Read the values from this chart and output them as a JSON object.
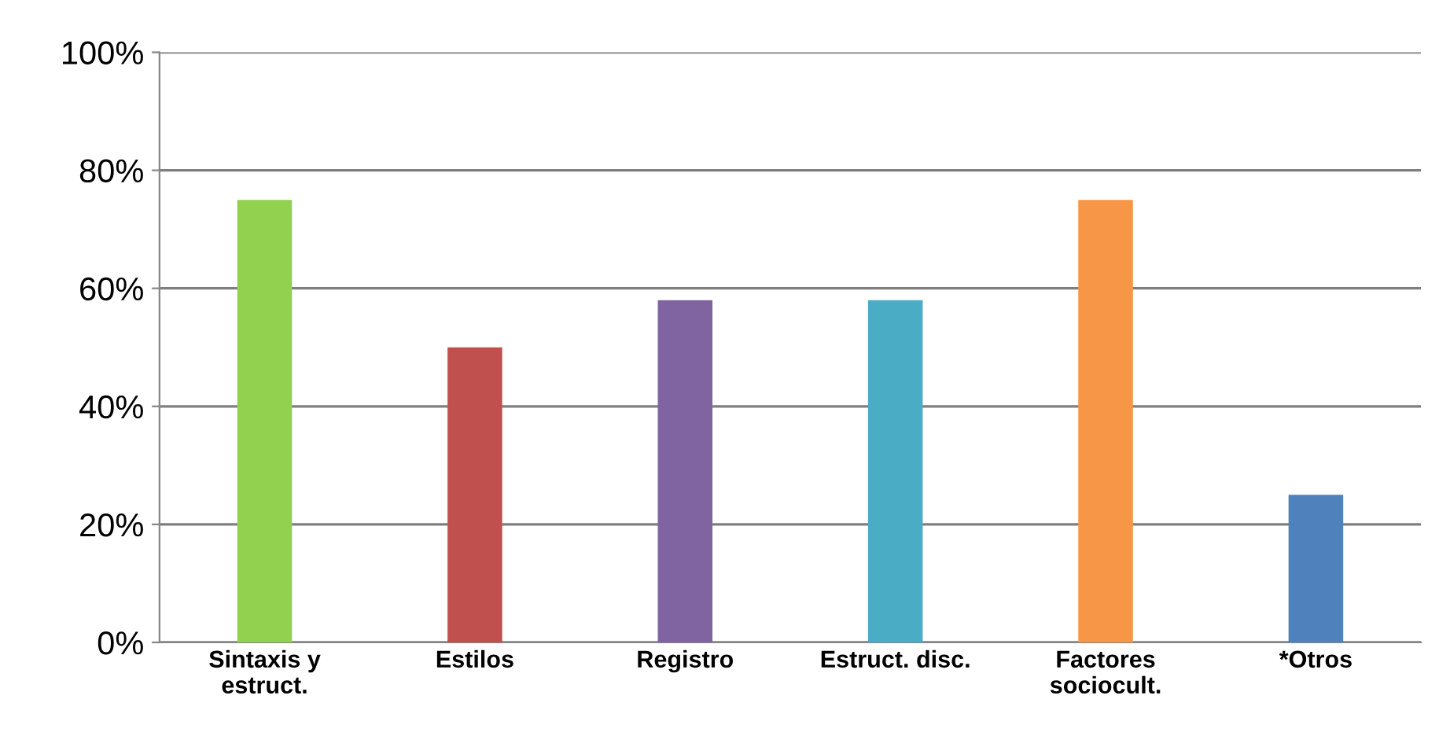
{
  "chart_data": {
    "type": "bar",
    "categories": [
      "Sintaxis y\nestruct.",
      "Estilos",
      "Registro",
      "Estruct. disc.",
      "Factores\nsociocult.",
      "*Otros"
    ],
    "values": [
      75,
      50,
      58,
      58,
      75,
      25
    ],
    "colors": [
      "#92d050",
      "#c0504d",
      "#8064a2",
      "#4bacc6",
      "#f79646",
      "#4f81bd"
    ],
    "ylim": [
      0,
      100
    ],
    "yticks": [
      {
        "value": 0,
        "label": "0%"
      },
      {
        "value": 20,
        "label": "20%"
      },
      {
        "value": 40,
        "label": "40%"
      },
      {
        "value": 60,
        "label": "60%"
      },
      {
        "value": 80,
        "label": "80%"
      },
      {
        "value": 100,
        "label": "100%"
      }
    ],
    "grid": "y"
  }
}
